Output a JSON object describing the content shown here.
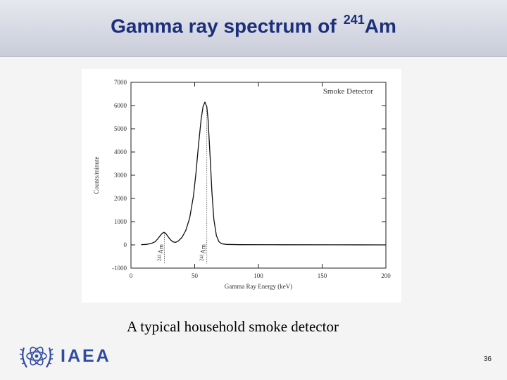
{
  "header": {
    "title": "Gamma ray spectrum of",
    "isotope_mass": "241",
    "isotope_symbol": "Am"
  },
  "caption": "A typical household smoke detector",
  "logo": {
    "text": "IAEA",
    "icon": "un-atom-emblem-icon"
  },
  "page_number": "36",
  "colors": {
    "title": "#1c2f7a",
    "logo": "#2f4aa0"
  },
  "chart_data": {
    "type": "line",
    "title": "Smoke Detector",
    "xlabel": "Gamma Ray Energy (keV)",
    "ylabel": "Counts/minute",
    "xlim": [
      0,
      200
    ],
    "ylim": [
      -1000,
      7000
    ],
    "xticks": [
      "0",
      "50",
      "100",
      "150",
      "200"
    ],
    "yticks": [
      "-1000",
      "0",
      "1000",
      "2000",
      "3000",
      "4000",
      "5000",
      "6000",
      "7000"
    ],
    "grid": false,
    "series": [
      {
        "x": [
          8,
          12,
          16,
          19,
          21,
          23,
          24.5,
          26,
          27.5,
          29,
          31,
          33,
          35,
          37,
          40,
          43,
          46,
          49,
          51,
          53,
          55,
          56.5,
          58,
          59.5,
          60.5,
          62,
          63.5,
          65,
          67,
          69,
          71,
          75,
          85,
          120,
          160,
          200
        ],
        "y": [
          10,
          20,
          60,
          140,
          260,
          400,
          500,
          540,
          480,
          360,
          220,
          130,
          110,
          160,
          320,
          620,
          1150,
          2100,
          3100,
          4300,
          5400,
          5950,
          6150,
          5950,
          5400,
          3900,
          2300,
          1100,
          400,
          140,
          50,
          20,
          10,
          5,
          2,
          0
        ]
      }
    ],
    "annotations": [
      {
        "x": 26.3,
        "label_mass": "241",
        "label_symbol": "Am"
      },
      {
        "x": 59.5,
        "label_mass": "241",
        "label_symbol": "Am"
      }
    ]
  }
}
